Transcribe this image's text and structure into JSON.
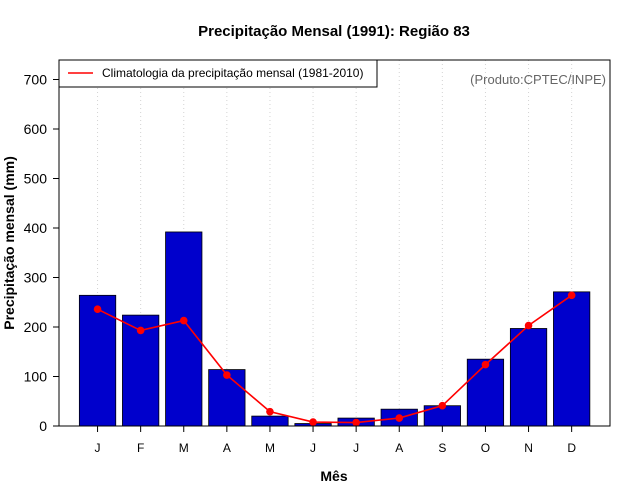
{
  "chart_data": {
    "type": "bar",
    "title": "Precipitação Mensal (1991): Região 83",
    "xlabel": "Mês",
    "ylabel": "Precipitação mensal (mm)",
    "ylim": [
      0,
      750
    ],
    "yticks": [
      0,
      100,
      200,
      300,
      400,
      500,
      600,
      700
    ],
    "categories": [
      "J",
      "F",
      "M",
      "A",
      "M",
      "J",
      "J",
      "A",
      "S",
      "O",
      "N",
      "D"
    ],
    "series": [
      {
        "name": "Precipitação mensal (1991)",
        "type": "bar",
        "color": "#0000CC",
        "values": [
          264,
          224,
          392,
          114,
          20,
          5,
          16,
          34,
          41,
          135,
          197,
          271
        ]
      },
      {
        "name": "Climatologia da precipitação mensal (1981-2010)",
        "type": "line",
        "color": "#FF0000",
        "values": [
          236,
          193,
          213,
          103,
          29,
          8,
          7,
          16,
          41,
          124,
          203,
          264
        ]
      }
    ],
    "legend": {
      "position": "top-left",
      "entries": [
        "Climatologia da precipitação mensal (1981-2010)"
      ]
    },
    "annotation": "(Produto:CPTEC/INPE)",
    "grid": "vertical-dotted"
  }
}
